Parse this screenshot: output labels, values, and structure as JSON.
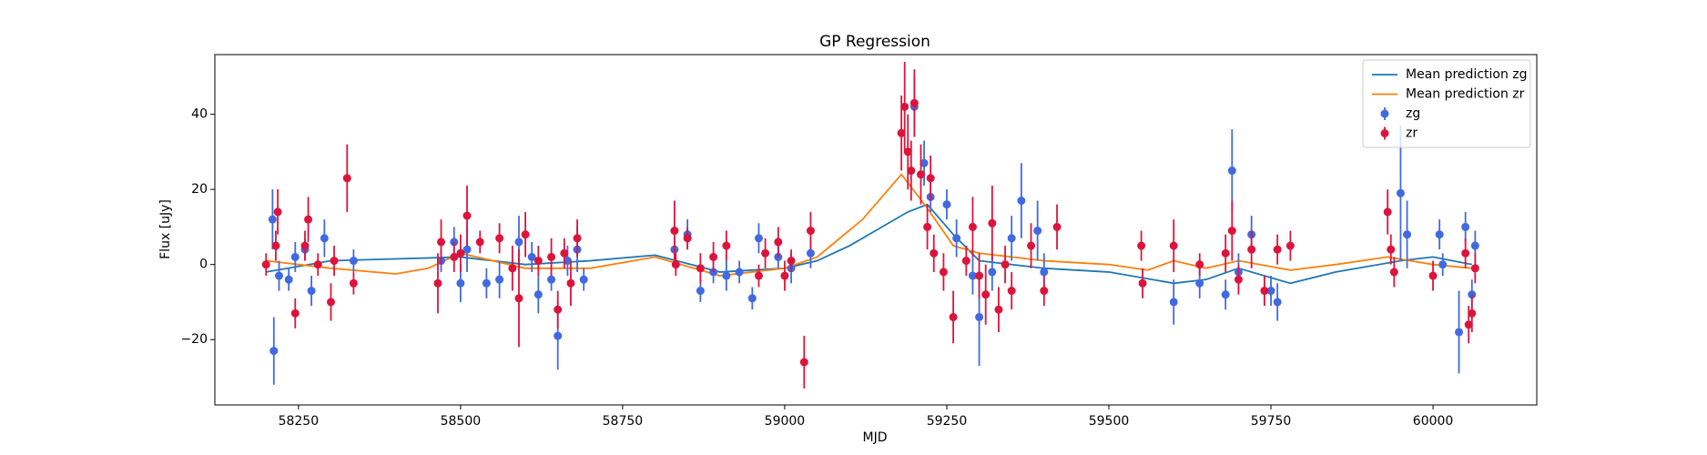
{
  "chart_data": {
    "type": "errorbar",
    "title": "GP Regression",
    "x_label": "MJD",
    "y_label": "Flux [uJy]",
    "xlim": [
      58121,
      60160
    ],
    "ylim": [
      -37.4,
      55.9
    ],
    "xticks": [
      58250,
      58500,
      58750,
      59000,
      59250,
      59500,
      59750,
      60000
    ],
    "yticks": [
      {
        "value": -20,
        "label": "−20"
      },
      0,
      20,
      40
    ],
    "legend": "upper right",
    "series": [
      {
        "name": "Mean prediction zg",
        "style": "line",
        "color": "#1f77b4",
        "x": [
          58200,
          58250,
          58300,
          58400,
          58500,
          58600,
          58700,
          58800,
          58900,
          59000,
          59050,
          59100,
          59150,
          59190,
          59220,
          59260,
          59300,
          59400,
          59500,
          59600,
          59650,
          59700,
          59780,
          59850,
          59950,
          60000,
          60060
        ],
        "values": [
          -2,
          -0.5,
          1,
          1.5,
          2,
          0,
          1,
          2.5,
          -2,
          -1,
          1,
          5,
          10,
          14,
          16,
          8,
          1,
          -1,
          -2,
          -5,
          -4,
          -1,
          -5,
          -2,
          1,
          2,
          0
        ]
      },
      {
        "name": "Mean prediction zr",
        "style": "line",
        "color": "#ff7f0e",
        "x": [
          58200,
          58250,
          58300,
          58400,
          58450,
          58500,
          58600,
          58700,
          58800,
          58900,
          59000,
          59050,
          59120,
          59180,
          59220,
          59260,
          59300,
          59400,
          59500,
          59560,
          59600,
          59650,
          59700,
          59780,
          59850,
          59930,
          60000,
          60060
        ],
        "values": [
          1,
          0,
          -1,
          -2.5,
          -1,
          3,
          -1,
          -1,
          2,
          -3,
          -1,
          2,
          12,
          24,
          15,
          5,
          3,
          1,
          0,
          -1.5,
          1,
          -1,
          1,
          -1.5,
          0,
          2,
          0,
          -1
        ]
      },
      {
        "name": "zg",
        "style": "errorbar",
        "color": "#4169e1",
        "x": [
          58210,
          58212,
          58220,
          58235,
          58245,
          58260,
          58270,
          58290,
          58335,
          58470,
          58490,
          58500,
          58510,
          58540,
          58560,
          58590,
          58610,
          58620,
          58640,
          58650,
          58665,
          58680,
          58690,
          58830,
          58850,
          58870,
          58890,
          58910,
          58930,
          58950,
          58960,
          58990,
          59010,
          59040,
          59200,
          59215,
          59225,
          59250,
          59265,
          59290,
          59300,
          59320,
          59350,
          59365,
          59390,
          59400,
          59600,
          59640,
          59680,
          59690,
          59700,
          59720,
          59750,
          59760,
          59950,
          59960,
          60010,
          60015,
          60040,
          60050,
          60060,
          60065
        ],
        "values": [
          12,
          -23,
          -3,
          -4,
          2,
          4,
          -7,
          7,
          1,
          1,
          6,
          -5,
          4,
          -5,
          -4,
          6,
          2,
          -8,
          -4,
          -19,
          1,
          4,
          -4,
          4,
          8,
          -7,
          -2,
          -3,
          -2,
          -9,
          7,
          2,
          -1,
          3,
          42,
          27,
          18,
          16,
          7,
          -3,
          -14,
          -2,
          7,
          17,
          9,
          -2,
          -10,
          -5,
          -8,
          25,
          -2,
          8,
          -7,
          -10,
          19,
          8,
          8,
          0,
          -18,
          10,
          -8,
          5
        ],
        "errors": [
          8,
          9,
          4,
          3,
          4,
          3,
          4,
          5,
          3,
          3,
          4,
          5,
          6,
          4,
          5,
          7,
          4,
          5,
          3,
          9,
          4,
          6,
          3,
          3,
          4,
          3,
          3,
          4,
          3,
          3,
          4,
          3,
          4,
          4,
          8,
          6,
          4,
          4,
          5,
          5,
          13,
          5,
          6,
          10,
          8,
          5,
          6,
          4,
          4,
          11,
          5,
          5,
          4,
          5,
          18,
          9,
          4,
          3,
          11,
          4,
          4,
          4
        ]
      },
      {
        "name": "zr",
        "style": "errorbar",
        "color": "#dc143c",
        "x": [
          58200,
          58215,
          58218,
          58245,
          58260,
          58265,
          58280,
          58300,
          58305,
          58325,
          58335,
          58465,
          58470,
          58490,
          58500,
          58510,
          58530,
          58560,
          58580,
          58590,
          58600,
          58620,
          58640,
          58650,
          58660,
          58670,
          58680,
          58830,
          58832,
          58850,
          58870,
          58890,
          58910,
          58960,
          58970,
          58990,
          59000,
          59010,
          59030,
          59040,
          59180,
          59185,
          59190,
          59195,
          59200,
          59210,
          59220,
          59225,
          59230,
          59245,
          59260,
          59280,
          59290,
          59300,
          59310,
          59320,
          59330,
          59340,
          59350,
          59380,
          59400,
          59420,
          59550,
          59552,
          59600,
          59640,
          59680,
          59690,
          59700,
          59720,
          59740,
          59760,
          59780,
          59930,
          59935,
          59940,
          60000,
          60050,
          60055,
          60060,
          60065
        ],
        "values": [
          0,
          5,
          14,
          -13,
          5,
          12,
          0,
          -10,
          1,
          23,
          -5,
          -5,
          6,
          2,
          3,
          13,
          6,
          7,
          -1,
          -9,
          8,
          1,
          2,
          -12,
          3,
          -5,
          7,
          9,
          0,
          7,
          -1,
          2,
          5,
          -3,
          3,
          6,
          -3,
          1,
          -26,
          9,
          35,
          42,
          30,
          25,
          43,
          24,
          10,
          23,
          3,
          -2,
          -14,
          1,
          10,
          -3,
          -8,
          11,
          -12,
          0,
          -7,
          5,
          -7,
          10,
          5,
          -5,
          5,
          0,
          3,
          9,
          -4,
          4,
          -7,
          4,
          5,
          14,
          4,
          -2,
          -3,
          3,
          -16,
          -13,
          -1
        ],
        "errors": [
          3,
          4,
          6,
          4,
          4,
          6,
          3,
          5,
          4,
          9,
          3,
          8,
          6,
          4,
          5,
          8,
          3,
          4,
          6,
          13,
          6,
          4,
          5,
          5,
          4,
          6,
          5,
          8,
          3,
          3,
          4,
          4,
          4,
          3,
          4,
          4,
          4,
          3,
          7,
          5,
          10,
          12,
          10,
          8,
          9,
          8,
          6,
          6,
          5,
          5,
          7,
          4,
          8,
          6,
          8,
          10,
          6,
          5,
          5,
          6,
          4,
          6,
          4,
          4,
          7,
          3,
          5,
          8,
          4,
          5,
          4,
          4,
          4,
          6,
          4,
          4,
          4,
          4,
          5,
          5,
          4
        ]
      }
    ]
  }
}
